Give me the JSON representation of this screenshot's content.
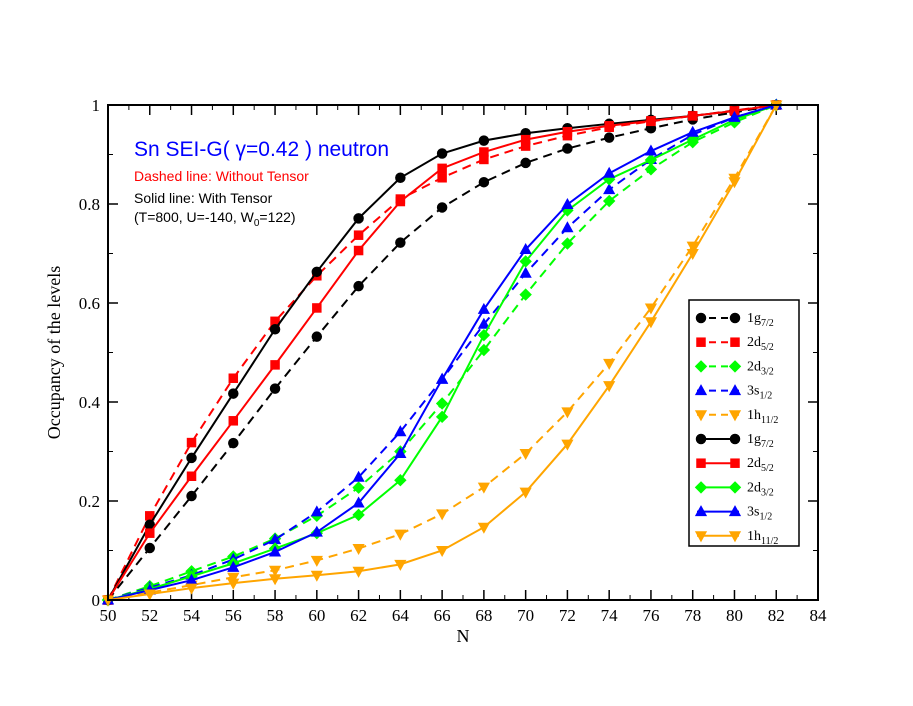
{
  "chart_data": {
    "type": "line",
    "xlabel": "N",
    "ylabel": "Occupancy of the levels",
    "xlim": [
      50,
      84
    ],
    "ylim": [
      0,
      1
    ],
    "xticks": [
      "50",
      "52",
      "54",
      "56",
      "58",
      "60",
      "62",
      "64",
      "66",
      "68",
      "70",
      "72",
      "74",
      "76",
      "78",
      "80",
      "82",
      "84"
    ],
    "yticks": [
      "0",
      "0.2",
      "0.4",
      "0.6",
      "0.8",
      "1"
    ],
    "x": [
      50,
      52,
      54,
      56,
      58,
      60,
      62,
      64,
      66,
      68,
      70,
      72,
      74,
      76,
      78,
      80,
      82
    ],
    "annotations": {
      "title": "Sn SEI-G( γ=0.42 ) neutron",
      "title_color": "#0000ff",
      "dashed_note": "Dashed line: Without Tensor",
      "dashed_note_color": "#ff0000",
      "solid_note": "Solid line: With Tensor",
      "params_prefix": "(T=800, U=-140, W",
      "params_sub": "0",
      "params_suffix": "=122)"
    },
    "series": [
      {
        "name": "1g 7/2 (without tensor)",
        "label_main": "1g",
        "label_sub": "7/2",
        "color": "#000000",
        "dash": true,
        "marker": "circle",
        "values": [
          0,
          0.105,
          0.21,
          0.317,
          0.427,
          0.532,
          0.634,
          0.722,
          0.793,
          0.844,
          0.883,
          0.912,
          0.934,
          0.953,
          0.971,
          0.985,
          1.0
        ]
      },
      {
        "name": "2d 5/2 (without tensor)",
        "label_main": "2d",
        "label_sub": "5/2",
        "color": "#ff0000",
        "dash": true,
        "marker": "square",
        "values": [
          0,
          0.17,
          0.318,
          0.448,
          0.563,
          0.655,
          0.737,
          0.81,
          0.853,
          0.89,
          0.917,
          0.938,
          0.955,
          0.967,
          0.978,
          0.989,
          1.0
        ]
      },
      {
        "name": "2d 3/2 (without tensor)",
        "label_main": "2d",
        "label_sub": "3/2",
        "color": "#00ff00",
        "dash": true,
        "marker": "diamond",
        "values": [
          0,
          0.028,
          0.058,
          0.088,
          0.124,
          0.17,
          0.227,
          0.3,
          0.397,
          0.505,
          0.617,
          0.72,
          0.806,
          0.87,
          0.925,
          0.965,
          1.0
        ]
      },
      {
        "name": "3s 1/2 (without tensor)",
        "label_main": "3s",
        "label_sub": "1/2",
        "color": "#0000ff",
        "dash": true,
        "marker": "triangle-up",
        "values": [
          0,
          0.025,
          0.05,
          0.082,
          0.122,
          0.178,
          0.248,
          0.34,
          0.446,
          0.557,
          0.66,
          0.752,
          0.829,
          0.89,
          0.94,
          0.975,
          1.0
        ]
      },
      {
        "name": "1h 11/2 (without tensor)",
        "label_main": "1h",
        "label_sub": "11/2",
        "color": "#ffa500",
        "dash": true,
        "marker": "triangle-down",
        "values": [
          0,
          0.015,
          0.03,
          0.046,
          0.06,
          0.08,
          0.104,
          0.133,
          0.174,
          0.228,
          0.296,
          0.38,
          0.478,
          0.59,
          0.715,
          0.852,
          1.0
        ]
      },
      {
        "name": "1g 7/2 (with tensor)",
        "label_main": "1g",
        "label_sub": "7/2",
        "color": "#000000",
        "dash": false,
        "marker": "circle",
        "values": [
          0,
          0.152,
          0.287,
          0.417,
          0.547,
          0.663,
          0.771,
          0.853,
          0.902,
          0.928,
          0.943,
          0.953,
          0.962,
          0.97,
          0.978,
          0.988,
          1.0
        ]
      },
      {
        "name": "2d 5/2 (with tensor)",
        "label_main": "2d",
        "label_sub": "5/2",
        "color": "#ff0000",
        "dash": false,
        "marker": "square",
        "values": [
          0,
          0.135,
          0.25,
          0.362,
          0.475,
          0.59,
          0.706,
          0.805,
          0.872,
          0.905,
          0.93,
          0.946,
          0.958,
          0.968,
          0.978,
          0.988,
          1.0
        ]
      },
      {
        "name": "2d 3/2 (with tensor)",
        "label_main": "2d",
        "label_sub": "3/2",
        "color": "#00ff00",
        "dash": false,
        "marker": "diamond",
        "values": [
          0,
          0.022,
          0.048,
          0.074,
          0.104,
          0.135,
          0.172,
          0.242,
          0.37,
          0.535,
          0.684,
          0.787,
          0.85,
          0.889,
          0.93,
          0.97,
          1.0
        ]
      },
      {
        "name": "3s 1/2 (with tensor)",
        "label_main": "3s",
        "label_sub": "1/2",
        "color": "#0000ff",
        "dash": false,
        "marker": "triangle-up",
        "values": [
          0,
          0.02,
          0.04,
          0.066,
          0.097,
          0.137,
          0.196,
          0.296,
          0.446,
          0.587,
          0.708,
          0.799,
          0.862,
          0.907,
          0.945,
          0.975,
          1.0
        ]
      },
      {
        "name": "1h 11/2 (with tensor)",
        "label_main": "1h",
        "label_sub": "11/2",
        "color": "#ffa500",
        "dash": false,
        "marker": "triangle-down",
        "values": [
          0,
          0.012,
          0.024,
          0.034,
          0.043,
          0.05,
          0.058,
          0.072,
          0.1,
          0.147,
          0.218,
          0.315,
          0.433,
          0.562,
          0.7,
          0.845,
          1.0
        ]
      }
    ],
    "legend": {
      "placement": "right-middle"
    }
  }
}
